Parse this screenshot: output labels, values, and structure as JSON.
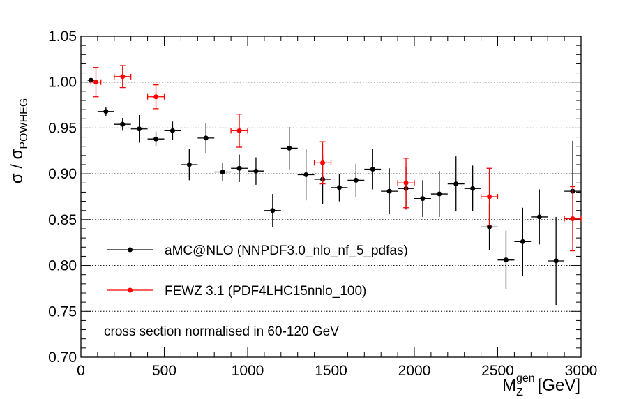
{
  "chart_data": {
    "type": "scatter",
    "xlabel": "M",
    "xlabel_sub": "Z",
    "xlabel_sup": "gen",
    "xlabel_unit": "[GeV]",
    "ylabel": "σ / σ",
    "ylabel_sub": "POWHEG",
    "xlim": [
      0,
      3000
    ],
    "ylim": [
      0.7,
      1.05
    ],
    "x_ticks": [
      0,
      500,
      1000,
      1500,
      2000,
      2500,
      3000
    ],
    "x_tick_labels": [
      "0",
      "500",
      "1000",
      "1500",
      "2000",
      "2500",
      "3000"
    ],
    "y_ticks": [
      0.7,
      0.75,
      0.8,
      0.85,
      0.9,
      0.95,
      1.0,
      1.05
    ],
    "y_tick_labels": [
      "0.70",
      "0.75",
      "0.80",
      "0.85",
      "0.90",
      "0.95",
      "1.00",
      "1.05"
    ],
    "grid_y": [
      0.75,
      0.8,
      0.85,
      0.9,
      0.95,
      1.0
    ],
    "annotation": "cross section normalised in 60-120 GeV",
    "legend": {
      "placement": "lower-left",
      "entries": [
        {
          "label": "aMC@NLO (NNPDF3.0_nlo_nf_5_pdfas)",
          "color": "#000000"
        },
        {
          "label": "FEWZ 3.1 (PDF4LHC15nnlo_100)",
          "color": "#ff0000"
        }
      ]
    },
    "series": [
      {
        "name": "aMC@NLO (NNPDF3.0_nlo_nf_5_pdfas)",
        "color": "#000000",
        "points": [
          {
            "x": 60,
            "xlo": 40,
            "xhi": 80,
            "y": 1.002,
            "err": 0.002
          },
          {
            "x": 150,
            "xlo": 100,
            "xhi": 200,
            "y": 0.968,
            "err": 0.005
          },
          {
            "x": 250,
            "xlo": 200,
            "xhi": 300,
            "y": 0.954,
            "err": 0.007
          },
          {
            "x": 350,
            "xlo": 300,
            "xhi": 400,
            "y": 0.949,
            "err": 0.015
          },
          {
            "x": 450,
            "xlo": 400,
            "xhi": 500,
            "y": 0.938,
            "err": 0.008
          },
          {
            "x": 550,
            "xlo": 500,
            "xhi": 600,
            "y": 0.947,
            "err": 0.01
          },
          {
            "x": 650,
            "xlo": 600,
            "xhi": 700,
            "y": 0.91,
            "err": 0.017
          },
          {
            "x": 750,
            "xlo": 700,
            "xhi": 800,
            "y": 0.939,
            "err": 0.016
          },
          {
            "x": 850,
            "xlo": 800,
            "xhi": 900,
            "y": 0.902,
            "err": 0.01
          },
          {
            "x": 950,
            "xlo": 900,
            "xhi": 1000,
            "y": 0.906,
            "err": 0.015
          },
          {
            "x": 1050,
            "xlo": 1000,
            "xhi": 1100,
            "y": 0.903,
            "err": 0.015
          },
          {
            "x": 1150,
            "xlo": 1100,
            "xhi": 1200,
            "y": 0.86,
            "err": 0.018
          },
          {
            "x": 1250,
            "xlo": 1200,
            "xhi": 1300,
            "y": 0.928,
            "err": 0.023
          },
          {
            "x": 1350,
            "xlo": 1300,
            "xhi": 1400,
            "y": 0.899,
            "err": 0.028
          },
          {
            "x": 1450,
            "xlo": 1400,
            "xhi": 1500,
            "y": 0.894,
            "err": 0.027
          },
          {
            "x": 1550,
            "xlo": 1500,
            "xhi": 1600,
            "y": 0.885,
            "err": 0.015
          },
          {
            "x": 1650,
            "xlo": 1600,
            "xhi": 1700,
            "y": 0.893,
            "err": 0.018
          },
          {
            "x": 1750,
            "xlo": 1700,
            "xhi": 1800,
            "y": 0.905,
            "err": 0.022
          },
          {
            "x": 1850,
            "xlo": 1800,
            "xhi": 1900,
            "y": 0.881,
            "err": 0.025
          },
          {
            "x": 1950,
            "xlo": 1900,
            "xhi": 2000,
            "y": 0.884,
            "err": 0.023
          },
          {
            "x": 2050,
            "xlo": 2000,
            "xhi": 2100,
            "y": 0.873,
            "err": 0.02
          },
          {
            "x": 2150,
            "xlo": 2100,
            "xhi": 2200,
            "y": 0.878,
            "err": 0.025
          },
          {
            "x": 2250,
            "xlo": 2200,
            "xhi": 2300,
            "y": 0.889,
            "err": 0.03
          },
          {
            "x": 2350,
            "xlo": 2300,
            "xhi": 2400,
            "y": 0.884,
            "err": 0.025
          },
          {
            "x": 2450,
            "xlo": 2400,
            "xhi": 2500,
            "y": 0.842,
            "err": 0.025
          },
          {
            "x": 2550,
            "xlo": 2500,
            "xhi": 2600,
            "y": 0.806,
            "err": 0.032
          },
          {
            "x": 2650,
            "xlo": 2600,
            "xhi": 2700,
            "y": 0.826,
            "err": 0.037
          },
          {
            "x": 2750,
            "xlo": 2700,
            "xhi": 2800,
            "y": 0.853,
            "err": 0.03
          },
          {
            "x": 2850,
            "xlo": 2800,
            "xhi": 2900,
            "y": 0.805,
            "err": 0.048
          },
          {
            "x": 2950,
            "xlo": 2900,
            "xhi": 3000,
            "y": 0.881,
            "err": 0.055
          }
        ]
      },
      {
        "name": "FEWZ 3.1 (PDF4LHC15nnlo_100)",
        "color": "#ff0000",
        "points": [
          {
            "x": 90,
            "xlo": 60,
            "xhi": 120,
            "y": 1.0,
            "err": 0.016
          },
          {
            "x": 250,
            "xlo": 200,
            "xhi": 300,
            "y": 1.006,
            "err": 0.012
          },
          {
            "x": 450,
            "xlo": 400,
            "xhi": 500,
            "y": 0.984,
            "err": 0.013
          },
          {
            "x": 950,
            "xlo": 900,
            "xhi": 1000,
            "y": 0.947,
            "err": 0.018
          },
          {
            "x": 1450,
            "xlo": 1400,
            "xhi": 1500,
            "y": 0.912,
            "err": 0.023
          },
          {
            "x": 1950,
            "xlo": 1900,
            "xhi": 2000,
            "y": 0.89,
            "err": 0.027
          },
          {
            "x": 2450,
            "xlo": 2400,
            "xhi": 2500,
            "y": 0.875,
            "err": 0.031
          },
          {
            "x": 2950,
            "xlo": 2900,
            "xhi": 3000,
            "y": 0.851,
            "err": 0.035
          }
        ]
      }
    ]
  }
}
